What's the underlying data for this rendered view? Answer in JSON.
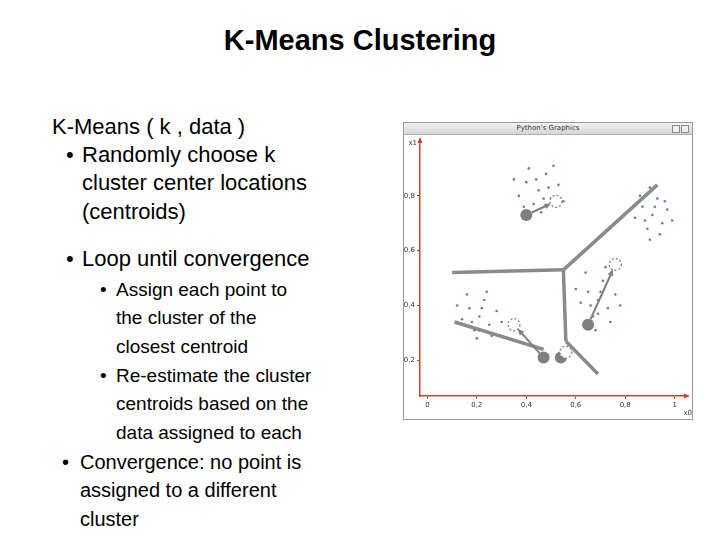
{
  "slide": {
    "title": "K-Means Clustering",
    "heading": "K-Means ( k , data )",
    "bullet": "•",
    "bullets": [
      {
        "lines": [
          "Randomly choose k",
          "cluster center locations",
          "(centroids)"
        ]
      },
      {
        "lines": [
          "Loop until convergence"
        ],
        "sub_bullets": [
          {
            "lines": [
              "Assign each point to",
              "the cluster of the",
              "closest centroid"
            ]
          },
          {
            "lines": [
              "Re-estimate the cluster",
              "centroids based on the",
              "data assigned to each"
            ]
          }
        ]
      },
      {
        "lines": [
          "Convergence: no point is",
          "assigned to a different",
          "cluster"
        ]
      }
    ]
  },
  "chart_data": {
    "type": "scatter",
    "window_title": "Python's Graphics",
    "x_label": "x0",
    "y_label": "x1",
    "xlim": [
      -0.03,
      1.05
    ],
    "ylim": [
      0.07,
      1.0
    ],
    "xticks": [
      0,
      {
        "value": 0.2,
        "label": "0,2"
      },
      {
        "value": 0.4,
        "label": "0,4"
      },
      {
        "value": 0.6,
        "label": "0,6"
      },
      {
        "value": 0.8,
        "label": "0,8"
      },
      1
    ],
    "yticks": [
      {
        "value": 0.2,
        "label": "0,2"
      },
      {
        "value": 0.4,
        "label": "0,4"
      },
      {
        "value": 0.6,
        "label": "0,6"
      },
      {
        "value": 0.8,
        "label": "0,8"
      }
    ],
    "grid": false,
    "clusters": {
      "color": "#5a7cc4",
      "points": [
        [
          [
            0.45,
            0.82
          ],
          [
            0.4,
            0.85
          ],
          [
            0.5,
            0.79
          ],
          [
            0.43,
            0.77
          ],
          [
            0.48,
            0.88
          ],
          [
            0.37,
            0.8
          ],
          [
            0.53,
            0.84
          ],
          [
            0.46,
            0.74
          ],
          [
            0.41,
            0.9
          ],
          [
            0.51,
            0.91
          ],
          [
            0.35,
            0.86
          ],
          [
            0.55,
            0.78
          ],
          [
            0.44,
            0.86
          ],
          [
            0.49,
            0.83
          ],
          [
            0.39,
            0.76
          ],
          [
            0.47,
            0.79
          ]
        ],
        [
          [
            0.91,
            0.73
          ],
          [
            0.87,
            0.76
          ],
          [
            0.95,
            0.7
          ],
          [
            0.89,
            0.68
          ],
          [
            0.93,
            0.79
          ],
          [
            0.84,
            0.72
          ],
          [
            0.97,
            0.75
          ],
          [
            0.9,
            0.64
          ],
          [
            0.86,
            0.8
          ],
          [
            0.94,
            0.66
          ],
          [
            0.82,
            0.75
          ],
          [
            0.99,
            0.71
          ],
          [
            0.92,
            0.76
          ],
          [
            0.88,
            0.71
          ],
          [
            0.96,
            0.78
          ],
          [
            0.9,
            0.83
          ]
        ],
        [
          [
            0.21,
            0.36
          ],
          [
            0.17,
            0.39
          ],
          [
            0.25,
            0.33
          ],
          [
            0.19,
            0.31
          ],
          [
            0.23,
            0.42
          ],
          [
            0.14,
            0.35
          ],
          [
            0.28,
            0.38
          ],
          [
            0.2,
            0.28
          ],
          [
            0.16,
            0.44
          ],
          [
            0.26,
            0.29
          ],
          [
            0.12,
            0.4
          ],
          [
            0.3,
            0.34
          ],
          [
            0.22,
            0.39
          ],
          [
            0.18,
            0.34
          ],
          [
            0.24,
            0.45
          ],
          [
            0.21,
            0.31
          ]
        ],
        [
          [
            0.69,
            0.42
          ],
          [
            0.65,
            0.45
          ],
          [
            0.73,
            0.39
          ],
          [
            0.67,
            0.36
          ],
          [
            0.71,
            0.49
          ],
          [
            0.62,
            0.41
          ],
          [
            0.76,
            0.44
          ],
          [
            0.68,
            0.31
          ],
          [
            0.64,
            0.52
          ],
          [
            0.74,
            0.34
          ],
          [
            0.6,
            0.46
          ],
          [
            0.78,
            0.4
          ],
          [
            0.7,
            0.45
          ],
          [
            0.66,
            0.4
          ],
          [
            0.72,
            0.54
          ],
          [
            0.69,
            0.37
          ]
        ]
      ]
    },
    "centroids": {
      "color": "#7f7f7f",
      "old": [
        [
          0.4,
          0.73
        ],
        [
          0.65,
          0.33
        ],
        [
          0.47,
          0.21
        ],
        [
          0.54,
          0.21
        ]
      ],
      "new": [
        [
          0.52,
          0.78
        ],
        [
          0.76,
          0.55
        ],
        [
          0.35,
          0.33
        ],
        [
          0.56,
          0.23
        ]
      ]
    },
    "boundaries": {
      "color": "#8a8a8a",
      "segments": [
        [
          [
            0.55,
            0.53
          ],
          [
            0.93,
            0.84
          ]
        ],
        [
          [
            0.55,
            0.53
          ],
          [
            0.1,
            0.52
          ]
        ],
        [
          [
            0.55,
            0.53
          ],
          [
            0.56,
            0.27
          ]
        ],
        [
          [
            0.56,
            0.27
          ],
          [
            0.69,
            0.15
          ]
        ],
        [
          [
            0.11,
            0.34
          ],
          [
            0.47,
            0.24
          ]
        ]
      ]
    }
  }
}
